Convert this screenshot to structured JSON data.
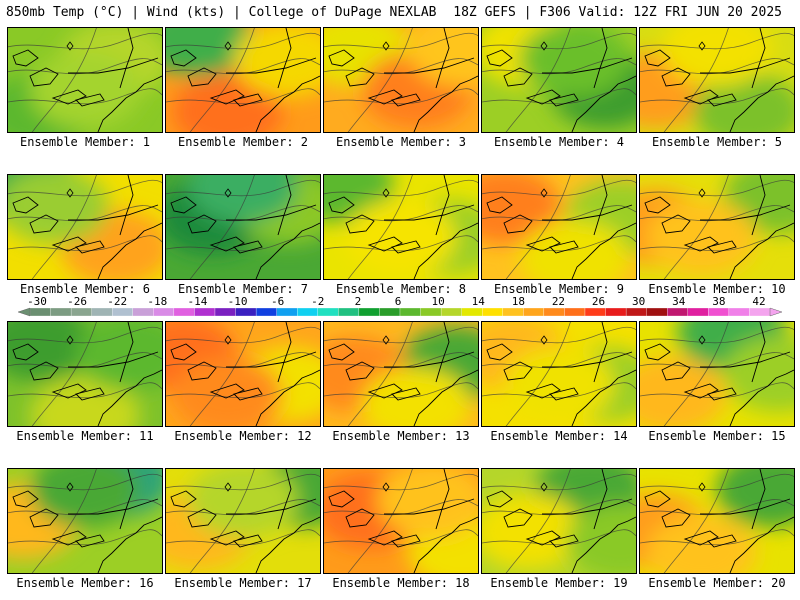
{
  "header": {
    "left_title": "850mb Temp (°C) | Wind (kts) | College of DuPage NEXLAB",
    "right_title": "18Z GEFS | F306 Valid: 12Z FRI JUN 20 2025"
  },
  "panels": [
    {
      "label": "Ensemble Member: 1",
      "base": "#8ac926",
      "blobs": [
        [
          "#5cb82e",
          0.2,
          0.8
        ],
        [
          "#b5d62a",
          0.7,
          0.3
        ],
        [
          "#a4d42e",
          0.5,
          0.6
        ]
      ]
    },
    {
      "label": "Ensemble Member: 2",
      "base": "#ff9b1a",
      "blobs": [
        [
          "#3fae4a",
          0.2,
          0.1
        ],
        [
          "#ff6f1a",
          0.4,
          0.8
        ],
        [
          "#f5d800",
          0.8,
          0.3
        ]
      ]
    },
    {
      "label": "Ensemble Member: 3",
      "base": "#ffab1f",
      "blobs": [
        [
          "#e8e200",
          0.2,
          0.2
        ],
        [
          "#ff7f1c",
          0.6,
          0.6
        ],
        [
          "#ffc51f",
          0.9,
          0.2
        ]
      ]
    },
    {
      "label": "Ensemble Member: 4",
      "base": "#9ccf25",
      "blobs": [
        [
          "#3e9d2e",
          0.8,
          0.6
        ],
        [
          "#f0e200",
          0.3,
          0.2
        ],
        [
          "#6bbf2b",
          0.6,
          0.3
        ]
      ]
    },
    {
      "label": "Ensemble Member: 5",
      "base": "#d8dd12",
      "blobs": [
        [
          "#ff9d1a",
          0.1,
          0.6
        ],
        [
          "#7cc12b",
          0.7,
          0.8
        ],
        [
          "#f3e100",
          0.5,
          0.2
        ]
      ]
    },
    {
      "label": "Ensemble Member: 6",
      "base": "#f2df00",
      "blobs": [
        [
          "#3fae4a",
          0.1,
          0.1
        ],
        [
          "#ffa31c",
          0.7,
          0.7
        ],
        [
          "#9acd32",
          0.3,
          0.3
        ]
      ]
    },
    {
      "label": "Ensemble Member: 7",
      "base": "#4aa834",
      "blobs": [
        [
          "#1f8a3a",
          0.3,
          0.4
        ],
        [
          "#8cc828",
          0.8,
          0.3
        ],
        [
          "#3aae62",
          0.5,
          0.1
        ]
      ]
    },
    {
      "label": "Ensemble Member: 8",
      "base": "#eae400",
      "blobs": [
        [
          "#5cb82e",
          0.1,
          0.1
        ],
        [
          "#9ccf25",
          0.8,
          0.6
        ],
        [
          "#f6e400",
          0.5,
          0.6
        ]
      ]
    },
    {
      "label": "Ensemble Member: 9",
      "base": "#ffc21f",
      "blobs": [
        [
          "#ff7f1c",
          0.15,
          0.3
        ],
        [
          "#9ccf25",
          0.9,
          0.4
        ],
        [
          "#f0e200",
          0.6,
          0.8
        ]
      ]
    },
    {
      "label": "Ensemble Member: 10",
      "base": "#e5df0a",
      "blobs": [
        [
          "#ff9d1a",
          0.1,
          0.5
        ],
        [
          "#7cc12b",
          0.9,
          0.2
        ],
        [
          "#ffc21f",
          0.4,
          0.6
        ]
      ]
    },
    {
      "label": "Ensemble Member: 11",
      "base": "#7ec22b",
      "blobs": [
        [
          "#3e9d2e",
          0.2,
          0.2
        ],
        [
          "#c8d81c",
          0.5,
          0.9
        ],
        [
          "#5cb82e",
          0.8,
          0.3
        ]
      ]
    },
    {
      "label": "Ensemble Member: 12",
      "base": "#ffa51c",
      "blobs": [
        [
          "#ff6f1a",
          0.1,
          0.3
        ],
        [
          "#f3e100",
          0.8,
          0.6
        ],
        [
          "#ff8a1c",
          0.4,
          0.7
        ]
      ]
    },
    {
      "label": "Ensemble Member: 13",
      "base": "#ffb81f",
      "blobs": [
        [
          "#4aa834",
          0.85,
          0.4
        ],
        [
          "#ff8a1c",
          0.2,
          0.5
        ],
        [
          "#f3e100",
          0.6,
          0.8
        ]
      ]
    },
    {
      "label": "Ensemble Member: 14",
      "base": "#f5e100",
      "blobs": [
        [
          "#ffb81f",
          0.2,
          0.3
        ],
        [
          "#9ccf25",
          0.8,
          0.6
        ],
        [
          "#f0e200",
          0.5,
          0.6
        ]
      ]
    },
    {
      "label": "Ensemble Member: 15",
      "base": "#e8e200",
      "blobs": [
        [
          "#3fae4a",
          0.6,
          0.1
        ],
        [
          "#ffb81f",
          0.2,
          0.7
        ],
        [
          "#9ccf25",
          0.9,
          0.5
        ]
      ]
    },
    {
      "label": "Ensemble Member: 16",
      "base": "#9ccf25",
      "blobs": [
        [
          "#2aa37a",
          0.7,
          0.1
        ],
        [
          "#ffb81f",
          0.1,
          0.5
        ],
        [
          "#4aa834",
          0.5,
          0.2
        ]
      ]
    },
    {
      "label": "Ensemble Member: 17",
      "base": "#e3de0a",
      "blobs": [
        [
          "#4aa834",
          0.9,
          0.2
        ],
        [
          "#ffb81f",
          0.2,
          0.6
        ],
        [
          "#b5d62a",
          0.5,
          0.3
        ]
      ]
    },
    {
      "label": "Ensemble Member: 18",
      "base": "#ff9b1a",
      "blobs": [
        [
          "#ff6f1a",
          0.3,
          0.4
        ],
        [
          "#f3e100",
          0.9,
          0.8
        ],
        [
          "#ffc21f",
          0.7,
          0.3
        ]
      ]
    },
    {
      "label": "Ensemble Member: 19",
      "base": "#b5d62a",
      "blobs": [
        [
          "#4aa834",
          0.7,
          0.2
        ],
        [
          "#f3e100",
          0.3,
          0.6
        ],
        [
          "#8ac926",
          0.9,
          0.7
        ]
      ]
    },
    {
      "label": "Ensemble Member: 20",
      "base": "#e8e200",
      "blobs": [
        [
          "#4aa834",
          0.85,
          0.2
        ],
        [
          "#ff9d1a",
          0.1,
          0.6
        ],
        [
          "#ffc21f",
          0.4,
          0.8
        ]
      ]
    }
  ],
  "colorbar": {
    "tick_labels": [
      "-30",
      "-26",
      "-22",
      "-18",
      "-14",
      "-10",
      "-6",
      "-2",
      "2",
      "6",
      "10",
      "14",
      "18",
      "22",
      "26",
      "30",
      "34",
      "38",
      "42"
    ],
    "colors": [
      "#6b8f71",
      "#7c9c82",
      "#8aa58f",
      "#9fb4b4",
      "#b0c0d0",
      "#c9a0d8",
      "#d98be6",
      "#e060e0",
      "#b030d0",
      "#7a20c0",
      "#3a20c0",
      "#1040e0",
      "#10a0f0",
      "#10d0f0",
      "#20e0c0",
      "#20c080",
      "#10a030",
      "#2a9d2a",
      "#5cb82e",
      "#8ac926",
      "#b5d62a",
      "#e3e800",
      "#ffe000",
      "#ffc21f",
      "#ffa51c",
      "#ff8a1c",
      "#ff6f1a",
      "#ff3c1a",
      "#e81c1c",
      "#c01818",
      "#a01010",
      "#c01870",
      "#e020a0",
      "#f050d0",
      "#f080e8",
      "#f4a4ee"
    ]
  }
}
